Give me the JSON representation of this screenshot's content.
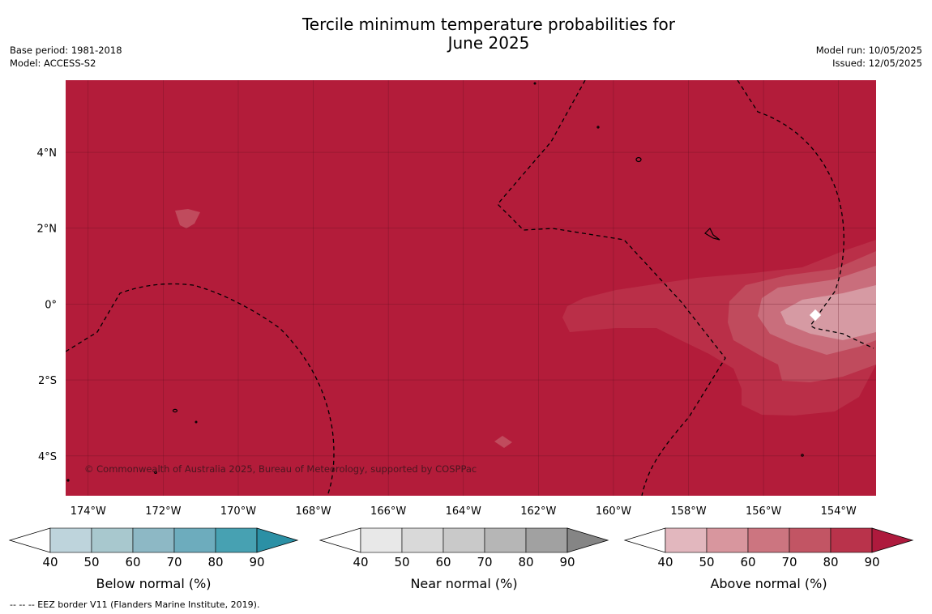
{
  "title_line1": "Tercile minimum temperature probabilities for",
  "title_line2": "June 2025",
  "base_period": "Base period: 1981-2018",
  "model": "Model: ACCESS-S2",
  "model_run": "Model run: 10/05/2025",
  "issued": "Issued: 12/05/2025",
  "copyright": "© Commonwealth of Australia 2025, Bureau of Meteorology, supported by COSPPac",
  "footer_note": "--  --  -- EEZ border V11 (Flanders Marine Institute, 2019).",
  "map": {
    "background_color": "#b31c3a",
    "lon_range": [
      -174.6,
      -153.0
    ],
    "lat_range": [
      -5.05,
      5.9
    ],
    "lon_ticks": [
      {
        "value": -174,
        "label": "174°W"
      },
      {
        "value": -172,
        "label": "172°W"
      },
      {
        "value": -170,
        "label": "170°W"
      },
      {
        "value": -168,
        "label": "168°W"
      },
      {
        "value": -166,
        "label": "166°W"
      },
      {
        "value": -164,
        "label": "164°W"
      },
      {
        "value": -162,
        "label": "162°W"
      },
      {
        "value": -160,
        "label": "160°W"
      },
      {
        "value": -158,
        "label": "158°W"
      },
      {
        "value": -156,
        "label": "156°W"
      },
      {
        "value": -154,
        "label": "154°W"
      }
    ],
    "lat_ticks": [
      {
        "value": 4,
        "label": "4°N"
      },
      {
        "value": 2,
        "label": "2°N"
      },
      {
        "value": 0,
        "label": "0°"
      },
      {
        "value": -2,
        "label": "2°S"
      },
      {
        "value": -4,
        "label": "4°S"
      }
    ],
    "grid": true
  },
  "colorbars": [
    {
      "label": "Below normal (%)",
      "ticks": [
        "40",
        "50",
        "60",
        "70",
        "80",
        "90"
      ],
      "colors": [
        "#bed4dc",
        "#a8c8ce",
        "#8db8c5",
        "#6dacbd",
        "#47a1b2",
        "#2b90a5"
      ]
    },
    {
      "label": "Near normal (%)",
      "ticks": [
        "40",
        "50",
        "60",
        "70",
        "80",
        "90"
      ],
      "colors": [
        "#e8e8e8",
        "#d9d9d9",
        "#c9c9c9",
        "#b6b6b6",
        "#a1a1a1",
        "#858585"
      ]
    },
    {
      "label": "Above normal (%)",
      "ticks": [
        "40",
        "50",
        "60",
        "70",
        "80",
        "90"
      ],
      "colors": [
        "#e2b7be",
        "#d8969e",
        "#cc7580",
        "#c25564",
        "#b9334b",
        "#ae1a3d"
      ]
    }
  ]
}
